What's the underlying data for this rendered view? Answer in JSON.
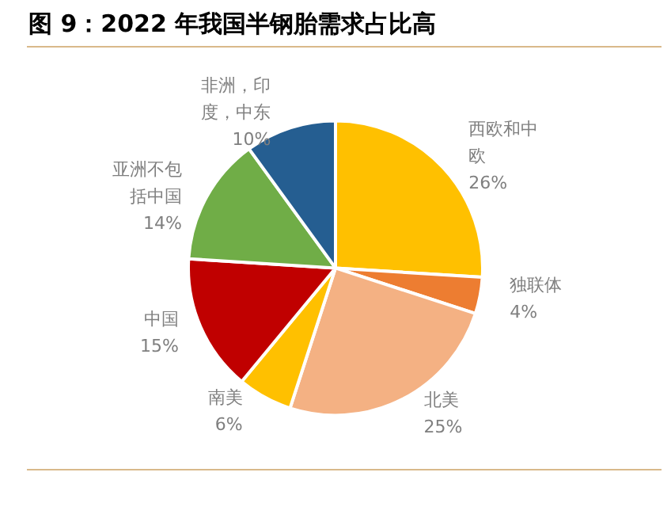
{
  "chart_data": {
    "type": "pie",
    "title": "图 9：2022 年我国半钢胎需求占比高",
    "categories": [
      "西欧和中欧",
      "独联体",
      "北美",
      "南美",
      "中国",
      "亚洲不包括中国",
      "非洲，印度，中东"
    ],
    "values": [
      26,
      4,
      25,
      6,
      15,
      14,
      10
    ],
    "value_labels": [
      "26%",
      "4%",
      "25%",
      "6%",
      "15%",
      "14%",
      "10%"
    ],
    "colors": [
      "#ffc000",
      "#ed7d31",
      "#f4b183",
      "#ffc000",
      "#c00000",
      "#70ad47",
      "#255e91"
    ],
    "legend": false
  }
}
